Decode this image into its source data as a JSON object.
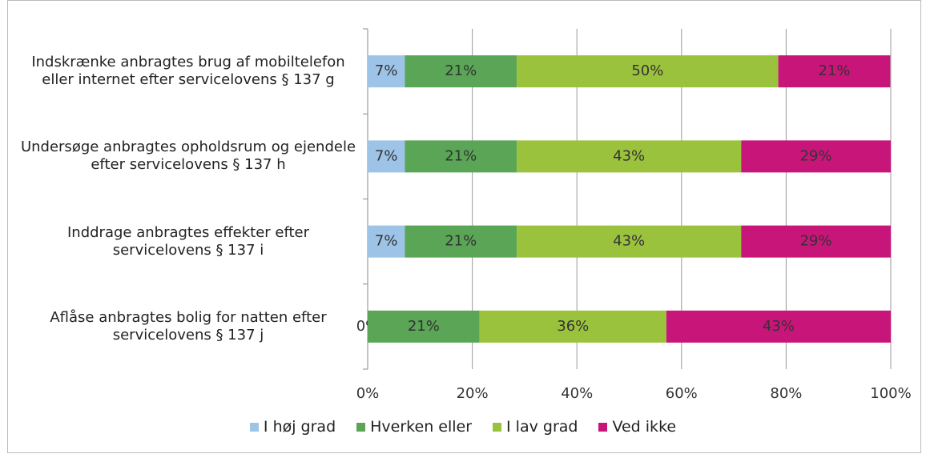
{
  "chart_data": {
    "type": "stacked_barh",
    "categories": [
      "Indskrænke anbragtes brug af mobiltelefon eller internet efter servicelovens § 137 g",
      "Undersøge anbragtes opholdsrum og ejendele efter servicelovens § 137 h",
      "Inddrage anbragtes effekter efter servicelovens § 137 i",
      "Aflåse anbragtes bolig for natten efter servicelovens § 137 j"
    ],
    "series": [
      {
        "name": "I høj grad",
        "color": "#9dc3e6",
        "values": [
          7.1,
          7.1,
          7.1,
          0
        ],
        "value_labels": [
          "7%",
          "7%",
          "7%",
          "0%"
        ]
      },
      {
        "name": "Hverken eller",
        "color": "#5aa556",
        "values": [
          21.4,
          21.4,
          21.4,
          21.4
        ],
        "value_labels": [
          "21%",
          "21%",
          "21%",
          "21%"
        ]
      },
      {
        "name": "I lav grad",
        "color": "#9bc23c",
        "values": [
          50,
          42.9,
          42.9,
          35.7
        ],
        "value_labels": [
          "50%",
          "43%",
          "43%",
          "36%"
        ]
      },
      {
        "name": "Ved ikke",
        "color": "#c8157a",
        "values": [
          21.4,
          28.6,
          28.6,
          42.9
        ],
        "value_labels": [
          "21%",
          "29%",
          "29%",
          "43%"
        ]
      }
    ],
    "xlim": [
      0,
      100
    ],
    "xticks": [
      {
        "value": 0,
        "label": "0%"
      },
      {
        "value": 20,
        "label": "20%"
      },
      {
        "value": 40,
        "label": "40%"
      },
      {
        "value": 60,
        "label": "60%"
      },
      {
        "value": 80,
        "label": "80%"
      },
      {
        "value": 100,
        "label": "100%"
      }
    ],
    "grid": true,
    "legend": "bottom"
  }
}
